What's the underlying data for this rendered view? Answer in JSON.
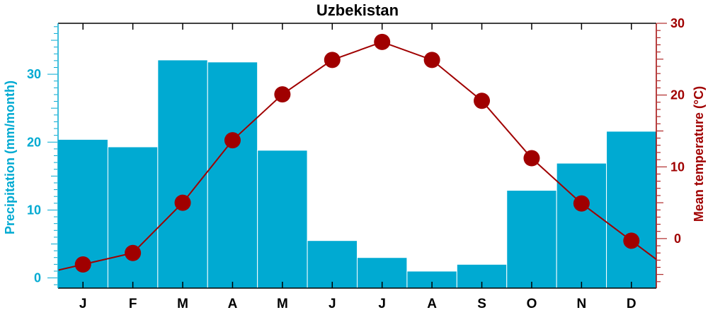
{
  "chart_data": {
    "type": "bar+line",
    "title": "Uzbekistan",
    "categories": [
      "J",
      "F",
      "M",
      "A",
      "M",
      "J",
      "J",
      "A",
      "S",
      "O",
      "N",
      "D"
    ],
    "series": [
      {
        "name": "Precipitation",
        "type": "bar",
        "axis": "left",
        "values": [
          20.4,
          19.3,
          32.1,
          31.8,
          18.8,
          5.5,
          3.0,
          1.0,
          2.0,
          12.9,
          16.9,
          21.6
        ]
      },
      {
        "name": "Mean temperature",
        "type": "line",
        "axis": "right",
        "values": [
          -3.6,
          -2.0,
          5.0,
          13.7,
          20.1,
          24.9,
          27.4,
          24.9,
          19.2,
          11.2,
          4.9,
          -0.3
        ]
      }
    ],
    "ylabel_left": "Precipitation (mm/month)",
    "ylabel_right": "Mean temperature (°C)",
    "ylim_left": [
      -1.5,
      37.5
    ],
    "ylim_right": [
      -6.9,
      30.0
    ],
    "yticks_left": [
      0,
      10,
      20,
      30
    ],
    "yticks_right": [
      0,
      10,
      20,
      30
    ],
    "grid": false,
    "colors": {
      "precipitation": "#00aad2",
      "temperature": "#a00000",
      "temperature_marker": "#a00000",
      "axis": "#000000"
    }
  }
}
